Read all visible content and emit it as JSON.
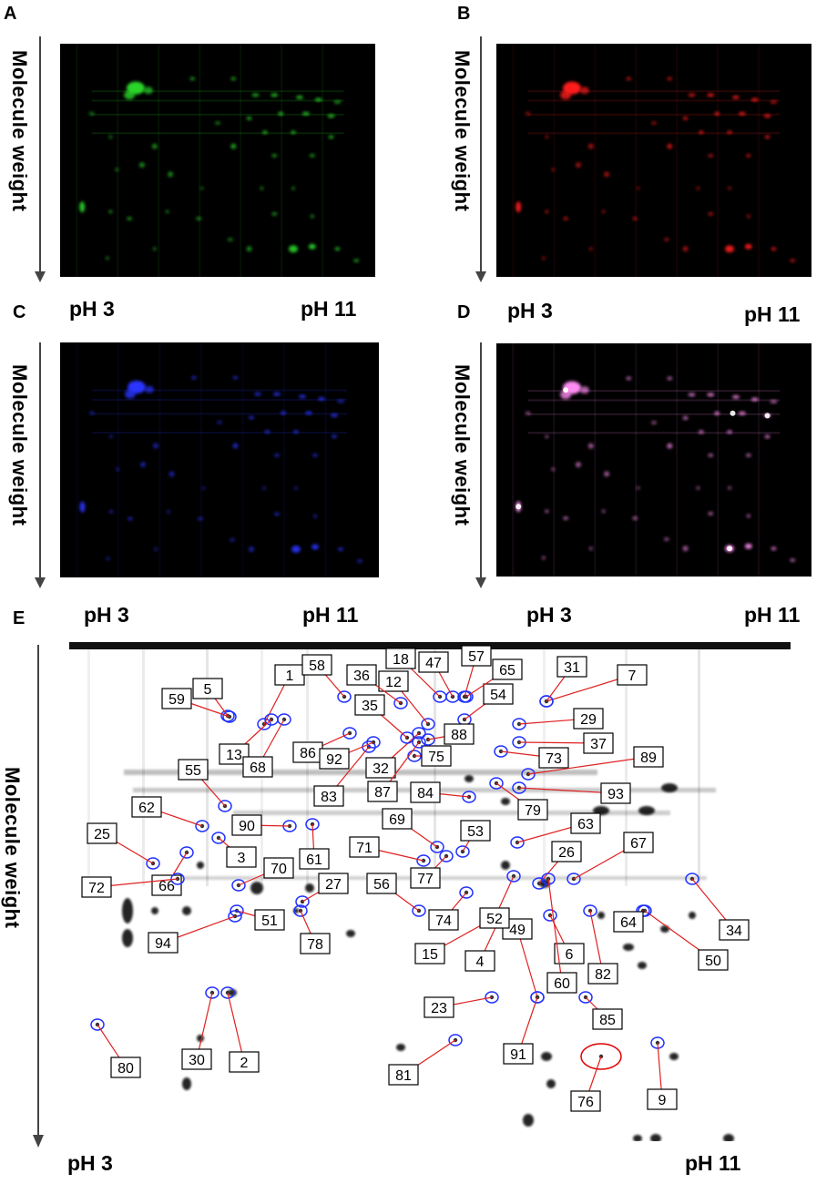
{
  "panels": [
    {
      "letter": "A",
      "ylabel": "Molecule weight",
      "ph_left": "pH 3",
      "ph_right": "pH 11",
      "stain_color": "#2bd52b"
    },
    {
      "letter": "B",
      "ylabel": "Molecule weight",
      "ph_left": "pH 3",
      "ph_right": "pH 11",
      "stain_color": "#ff1f1f"
    },
    {
      "letter": "C",
      "ylabel": "Molecule weight",
      "ph_left": "pH 3",
      "ph_right": "pH 11",
      "stain_color": "#2a35ff"
    },
    {
      "letter": "D",
      "ylabel": "Molecule weight",
      "ph_left": "pH 3",
      "ph_right": "pH 11",
      "stain_color": "#ff8cf2"
    },
    {
      "letter": "E",
      "ylabel": "Molecule weight",
      "ph_left": "pH 3",
      "ph_right": "pH 11"
    }
  ],
  "spot_labels": [
    "1",
    "2",
    "3",
    "4",
    "5",
    "6",
    "7",
    "9",
    "12",
    "13",
    "15",
    "18",
    "23",
    "25",
    "26",
    "27",
    "29",
    "30",
    "31",
    "32",
    "34",
    "35",
    "36",
    "37",
    "47",
    "49",
    "50",
    "51",
    "52",
    "53",
    "54",
    "55",
    "56",
    "57",
    "58",
    "59",
    "60",
    "61",
    "62",
    "63",
    "64",
    "65",
    "66",
    "67",
    "68",
    "69",
    "70",
    "71",
    "72",
    "73",
    "74",
    "75",
    "76",
    "77",
    "78",
    "79",
    "80",
    "81",
    "82",
    "83",
    "84",
    "85",
    "86",
    "87",
    "88",
    "89",
    "90",
    "91",
    "92",
    "93",
    "94"
  ],
  "colors": {
    "outline_blue": "#1f2fff",
    "outline_red": "#e00000",
    "leader": "#e02020"
  }
}
